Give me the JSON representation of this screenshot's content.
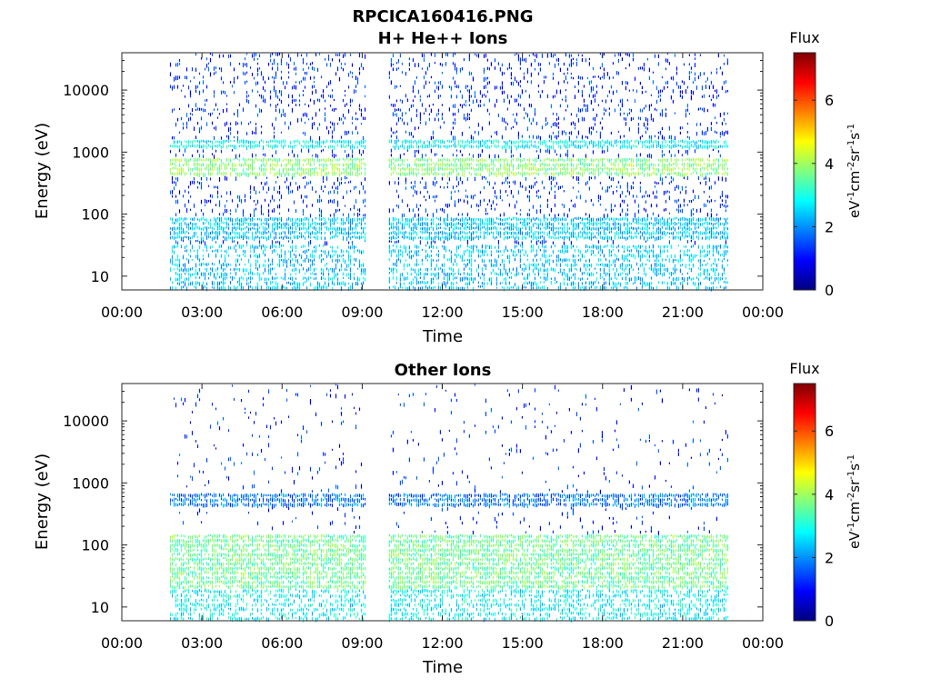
{
  "figure": {
    "title": "RPCICA160416.PNG"
  },
  "colormap": [
    "#00007f",
    "#0000ff",
    "#007fff",
    "#00ffff",
    "#7fff7f",
    "#ffff00",
    "#ff7f00",
    "#ff0000",
    "#7f0000"
  ],
  "chart_data": [
    {
      "type": "heatmap",
      "title": "H+ He++ Ions",
      "xlabel": "Time",
      "ylabel": "Energy (eV)",
      "x_range_hours": [
        0,
        24
      ],
      "x_ticks": [
        "00:00",
        "03:00",
        "06:00",
        "09:00",
        "12:00",
        "15:00",
        "18:00",
        "21:00",
        "00:00"
      ],
      "y_scale": "log",
      "y_range_eV": [
        6,
        40000
      ],
      "y_ticks": [
        "10",
        "100",
        "1000",
        "10000"
      ],
      "y_tick_values": [
        10,
        100,
        1000,
        10000
      ],
      "data_coverage_hours": [
        [
          1.8,
          9.1
        ],
        [
          10.0,
          22.7
        ]
      ],
      "features": [
        {
          "name": "dense band",
          "energy_eV": [
            400,
            750
          ],
          "flux_level": 3.8
        },
        {
          "name": "upper band",
          "energy_eV": [
            1100,
            1600
          ],
          "flux_level": 2.8
        },
        {
          "name": "low band",
          "energy_eV": [
            40,
            90
          ],
          "flux_level": 2.4
        }
      ],
      "colorbar": {
        "label": "Flux",
        "units": "eV-1cm-2sr-1s-1",
        "range": [
          0,
          7.5
        ],
        "ticks": [
          "0",
          "2",
          "4",
          "6"
        ],
        "tick_values": [
          0,
          2,
          4,
          6
        ]
      }
    },
    {
      "type": "heatmap",
      "title": "Other Ions",
      "xlabel": "Time",
      "ylabel": "Energy (eV)",
      "x_range_hours": [
        0,
        24
      ],
      "x_ticks": [
        "00:00",
        "03:00",
        "06:00",
        "09:00",
        "12:00",
        "15:00",
        "18:00",
        "21:00",
        "00:00"
      ],
      "y_scale": "log",
      "y_range_eV": [
        6,
        40000
      ],
      "y_ticks": [
        "10",
        "100",
        "1000",
        "10000"
      ],
      "y_tick_values": [
        10,
        100,
        1000,
        10000
      ],
      "data_coverage_hours": [
        [
          1.8,
          9.1
        ],
        [
          10.0,
          22.7
        ]
      ],
      "features": [
        {
          "name": "thin line",
          "energy_eV": [
            450,
            700
          ],
          "flux_level": 1.8
        },
        {
          "name": "low energy enhancement",
          "energy_eV": [
            20,
            150
          ],
          "flux_level": 3.6
        }
      ],
      "colorbar": {
        "label": "Flux",
        "units": "eV-1cm-2sr-1s-1",
        "range": [
          0,
          7.5
        ],
        "ticks": [
          "0",
          "2",
          "4",
          "6"
        ],
        "tick_values": [
          0,
          2,
          4,
          6
        ]
      }
    }
  ]
}
